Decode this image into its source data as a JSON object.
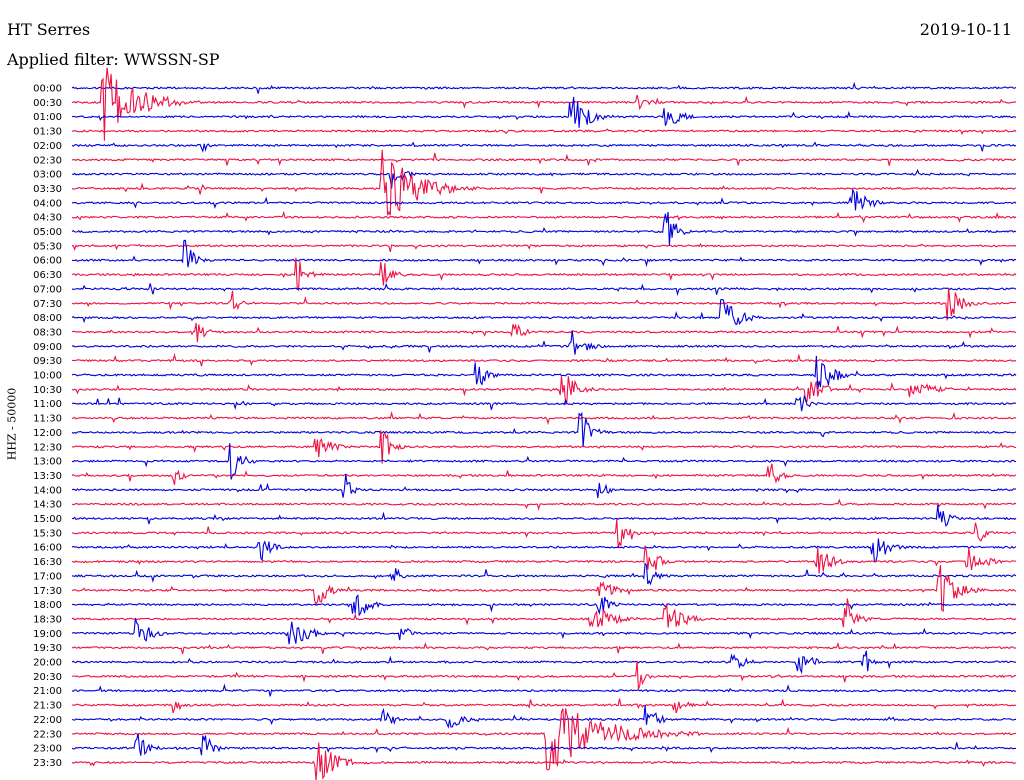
{
  "header": {
    "station": "HT Serres",
    "date": "2019-10-11",
    "filter": "Applied filter: WWSSN-SP"
  },
  "colors": {
    "even_hour": "#0000dd",
    "half_hour": "#ee1144"
  },
  "chart_data": {
    "type": "line",
    "title": "HT Serres",
    "subtitle": "Applied filter: WWSSN-SP",
    "ylabel": "HHZ - 50000",
    "xlabel": "",
    "grid": false,
    "legend": "none",
    "trace_minutes": 30,
    "categories": [
      "00:00",
      "00:30",
      "01:00",
      "01:30",
      "02:00",
      "02:30",
      "03:00",
      "03:30",
      "04:00",
      "04:30",
      "05:00",
      "05:30",
      "06:00",
      "06:30",
      "07:00",
      "07:30",
      "08:00",
      "08:30",
      "09:00",
      "09:30",
      "10:00",
      "10:30",
      "11:00",
      "11:30",
      "12:00",
      "12:30",
      "13:00",
      "13:30",
      "14:00",
      "14:30",
      "15:00",
      "15:30",
      "16:00",
      "16:30",
      "17:00",
      "17:30",
      "18:00",
      "18:30",
      "19:00",
      "19:30",
      "20:00",
      "20:30",
      "21:00",
      "21:30",
      "22:00",
      "22:30",
      "23:00",
      "23:30"
    ],
    "events": [
      {
        "row": 1,
        "t": 0.035,
        "amp": 1.0,
        "dur": 0.1
      },
      {
        "row": 1,
        "t": 0.6,
        "amp": 0.2,
        "dur": 0.04
      },
      {
        "row": 2,
        "t": 0.53,
        "amp": 0.55,
        "dur": 0.05
      },
      {
        "row": 2,
        "t": 0.63,
        "amp": 0.4,
        "dur": 0.04
      },
      {
        "row": 4,
        "t": 0.14,
        "amp": 0.15,
        "dur": 0.02
      },
      {
        "row": 6,
        "t": 0.34,
        "amp": 0.4,
        "dur": 0.03
      },
      {
        "row": 7,
        "t": 0.33,
        "amp": 1.0,
        "dur": 0.1
      },
      {
        "row": 8,
        "t": 0.83,
        "amp": 0.35,
        "dur": 0.04
      },
      {
        "row": 10,
        "t": 0.63,
        "amp": 0.6,
        "dur": 0.03
      },
      {
        "row": 12,
        "t": 0.12,
        "amp": 0.5,
        "dur": 0.03
      },
      {
        "row": 13,
        "t": 0.24,
        "amp": 0.45,
        "dur": 0.03
      },
      {
        "row": 13,
        "t": 0.33,
        "amp": 0.35,
        "dur": 0.03
      },
      {
        "row": 15,
        "t": 0.17,
        "amp": 0.35,
        "dur": 0.02
      },
      {
        "row": 15,
        "t": 0.93,
        "amp": 0.45,
        "dur": 0.04
      },
      {
        "row": 16,
        "t": 0.69,
        "amp": 0.5,
        "dur": 0.05
      },
      {
        "row": 17,
        "t": 0.13,
        "amp": 0.35,
        "dur": 0.03
      },
      {
        "row": 17,
        "t": 0.47,
        "amp": 0.3,
        "dur": 0.03
      },
      {
        "row": 18,
        "t": 0.53,
        "amp": 0.4,
        "dur": 0.04
      },
      {
        "row": 20,
        "t": 0.43,
        "amp": 0.4,
        "dur": 0.03
      },
      {
        "row": 20,
        "t": 0.79,
        "amp": 0.7,
        "dur": 0.04
      },
      {
        "row": 21,
        "t": 0.52,
        "amp": 0.55,
        "dur": 0.04
      },
      {
        "row": 21,
        "t": 0.78,
        "amp": 0.45,
        "dur": 0.04
      },
      {
        "row": 21,
        "t": 0.89,
        "amp": 0.3,
        "dur": 0.06
      },
      {
        "row": 22,
        "t": 0.77,
        "amp": 0.35,
        "dur": 0.03
      },
      {
        "row": 24,
        "t": 0.54,
        "amp": 0.6,
        "dur": 0.03
      },
      {
        "row": 25,
        "t": 0.26,
        "amp": 0.3,
        "dur": 0.05
      },
      {
        "row": 25,
        "t": 0.33,
        "amp": 0.45,
        "dur": 0.03
      },
      {
        "row": 26,
        "t": 0.17,
        "amp": 0.55,
        "dur": 0.03
      },
      {
        "row": 27,
        "t": 0.11,
        "amp": 0.3,
        "dur": 0.02
      },
      {
        "row": 27,
        "t": 0.74,
        "amp": 0.35,
        "dur": 0.03
      },
      {
        "row": 28,
        "t": 0.29,
        "amp": 0.4,
        "dur": 0.02
      },
      {
        "row": 28,
        "t": 0.56,
        "amp": 0.35,
        "dur": 0.02
      },
      {
        "row": 30,
        "t": 0.92,
        "amp": 0.35,
        "dur": 0.03
      },
      {
        "row": 31,
        "t": 0.58,
        "amp": 0.4,
        "dur": 0.03
      },
      {
        "row": 31,
        "t": 0.96,
        "amp": 0.3,
        "dur": 0.03
      },
      {
        "row": 32,
        "t": 0.2,
        "amp": 0.4,
        "dur": 0.03
      },
      {
        "row": 32,
        "t": 0.85,
        "amp": 0.45,
        "dur": 0.04
      },
      {
        "row": 33,
        "t": 0.61,
        "amp": 0.55,
        "dur": 0.03
      },
      {
        "row": 33,
        "t": 0.79,
        "amp": 0.45,
        "dur": 0.04
      },
      {
        "row": 33,
        "t": 0.95,
        "amp": 0.5,
        "dur": 0.04
      },
      {
        "row": 34,
        "t": 0.34,
        "amp": 0.35,
        "dur": 0.02
      },
      {
        "row": 34,
        "t": 0.61,
        "amp": 0.35,
        "dur": 0.03
      },
      {
        "row": 35,
        "t": 0.26,
        "amp": 0.5,
        "dur": 0.03
      },
      {
        "row": 35,
        "t": 0.56,
        "amp": 0.5,
        "dur": 0.03
      },
      {
        "row": 35,
        "t": 0.92,
        "amp": 0.65,
        "dur": 0.05
      },
      {
        "row": 36,
        "t": 0.3,
        "amp": 0.7,
        "dur": 0.03
      },
      {
        "row": 36,
        "t": 0.56,
        "amp": 0.3,
        "dur": 0.03
      },
      {
        "row": 37,
        "t": 0.55,
        "amp": 0.45,
        "dur": 0.06
      },
      {
        "row": 37,
        "t": 0.63,
        "amp": 0.4,
        "dur": 0.06
      },
      {
        "row": 37,
        "t": 0.82,
        "amp": 0.6,
        "dur": 0.03
      },
      {
        "row": 38,
        "t": 0.07,
        "amp": 0.4,
        "dur": 0.04
      },
      {
        "row": 38,
        "t": 0.23,
        "amp": 0.4,
        "dur": 0.06
      },
      {
        "row": 38,
        "t": 0.35,
        "amp": 0.3,
        "dur": 0.02
      },
      {
        "row": 40,
        "t": 0.7,
        "amp": 0.3,
        "dur": 0.04
      },
      {
        "row": 40,
        "t": 0.77,
        "amp": 0.35,
        "dur": 0.04
      },
      {
        "row": 40,
        "t": 0.84,
        "amp": 0.4,
        "dur": 0.02
      },
      {
        "row": 41,
        "t": 0.6,
        "amp": 0.4,
        "dur": 0.02
      },
      {
        "row": 43,
        "t": 0.11,
        "amp": 0.2,
        "dur": 0.03
      },
      {
        "row": 43,
        "t": 0.64,
        "amp": 0.25,
        "dur": 0.03
      },
      {
        "row": 44,
        "t": 0.33,
        "amp": 0.3,
        "dur": 0.03
      },
      {
        "row": 44,
        "t": 0.4,
        "amp": 0.3,
        "dur": 0.04
      },
      {
        "row": 44,
        "t": 0.61,
        "amp": 0.45,
        "dur": 0.03
      },
      {
        "row": 45,
        "t": 0.505,
        "amp": 1.0,
        "dur": 0.16
      },
      {
        "row": 46,
        "t": 0.07,
        "amp": 0.4,
        "dur": 0.03
      },
      {
        "row": 46,
        "t": 0.14,
        "amp": 0.4,
        "dur": 0.03
      },
      {
        "row": 47,
        "t": 0.26,
        "amp": 0.55,
        "dur": 0.06
      }
    ]
  }
}
